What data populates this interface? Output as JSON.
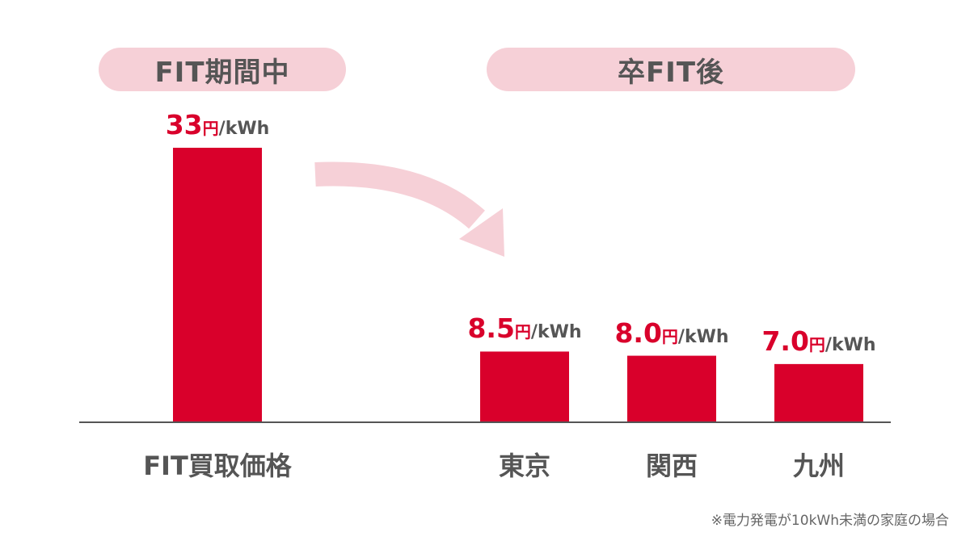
{
  "groups": [
    {
      "label": "FIT期間中"
    },
    {
      "label": "卒FIT後"
    }
  ],
  "chart_data": {
    "type": "bar",
    "categories": [
      "FIT買取価格",
      "東京",
      "関西",
      "九州"
    ],
    "values": [
      33,
      8.5,
      8.0,
      7.0
    ],
    "value_labels": [
      "33",
      "8.5",
      "8.0",
      "7.0"
    ],
    "unit_yen": "円",
    "unit_per": "/kWh",
    "ylim": [
      0,
      36
    ],
    "grid": false,
    "bar_color": "#d9002b",
    "arrow_color": "#f6d0d7"
  },
  "footnote": "※電力発電が10kWh未満の家庭の場合"
}
